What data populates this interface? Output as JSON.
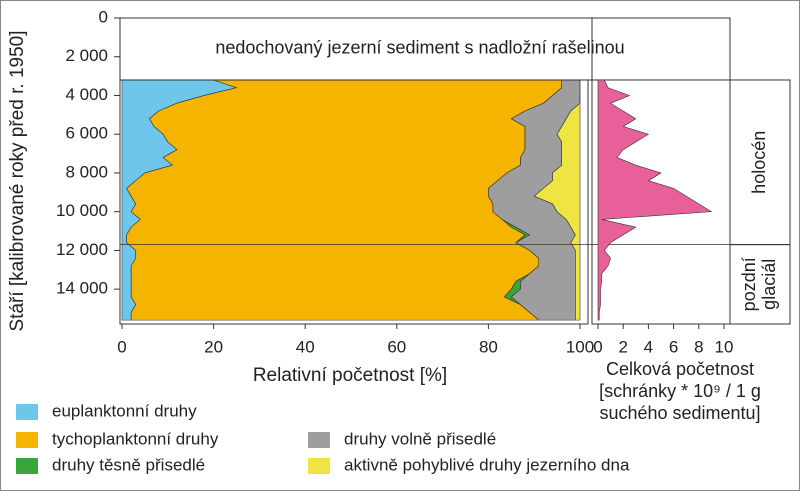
{
  "chart_data": [
    {
      "type": "stacked-area-vertical",
      "ylabel": "Stáří [kalibrované roky před r. 1950]",
      "xlabel": "Relativní početnost [%]",
      "x": [
        3200,
        3600,
        4000,
        4400,
        4800,
        5200,
        5600,
        6000,
        6400,
        6800,
        7200,
        7600,
        8000,
        8400,
        8800,
        9200,
        9600,
        10000,
        10400,
        10800,
        11200,
        11600,
        12000,
        12400,
        12800,
        13200,
        13600,
        14000,
        14400,
        14800,
        15200,
        15600
      ],
      "series": [
        {
          "name": "euplanktonní druhy",
          "color": "#6ec6ea",
          "values": [
            20,
            25,
            18,
            12,
            8,
            6,
            7,
            9,
            10,
            12,
            9,
            11,
            5,
            3,
            1,
            2,
            3,
            2,
            4,
            2,
            1,
            1,
            3,
            3,
            2,
            2,
            2,
            2,
            2,
            3,
            2,
            2
          ]
        },
        {
          "name": "tychoplanktonní druhy",
          "color": "#f4b400",
          "values": [
            76,
            71,
            76,
            80,
            80,
            79,
            81,
            79,
            78,
            76,
            78,
            76,
            79,
            79,
            79,
            78,
            78,
            79,
            79,
            83,
            87,
            85,
            86,
            88,
            89,
            87,
            84,
            83,
            81.5,
            84,
            87,
            89
          ]
        },
        {
          "name": "druhy těsně přisedlé",
          "color": "#3aa639",
          "values": [
            0,
            0,
            0,
            0,
            0,
            0,
            0,
            0,
            0,
            0,
            0,
            0,
            0,
            0,
            0,
            0,
            0,
            0,
            0,
            1,
            1,
            0,
            0,
            0,
            0,
            0,
            1,
            2,
            1.5,
            0,
            0,
            0
          ]
        },
        {
          "name": "druhy volně přisedlé",
          "color": "#9e9e9e",
          "values": [
            4,
            4,
            6,
            8,
            10,
            12,
            8,
            7,
            8,
            8,
            9,
            9,
            10,
            12,
            12,
            10,
            13,
            14,
            14,
            12,
            10,
            12,
            10,
            8,
            8,
            10,
            12,
            12,
            14,
            12,
            10,
            8
          ]
        },
        {
          "name": "aktivně pohyblivé druhy jezerního dna",
          "color": "#f0e442",
          "values": [
            0,
            0,
            0,
            0,
            2,
            3,
            4,
            5,
            4,
            4,
            4,
            4,
            6,
            6,
            8,
            10,
            6,
            5,
            3,
            2,
            1,
            2,
            1,
            1,
            1,
            1,
            1,
            1,
            1,
            1,
            1,
            1
          ]
        }
      ],
      "xlim": [
        0,
        100
      ],
      "xticks": [
        0,
        20,
        40,
        60,
        80,
        100
      ],
      "ylim": [
        0,
        15800
      ],
      "y_reversed": true,
      "yticks": [
        0,
        {
          "value": 2000,
          "label": "2 000"
        },
        {
          "value": 4000,
          "label": "4 000"
        },
        {
          "value": 6000,
          "label": "6 000"
        },
        {
          "value": 8000,
          "label": "8 000"
        },
        {
          "value": 10000,
          "label": "10 000"
        },
        {
          "value": 12000,
          "label": "12 000"
        },
        {
          "value": 14000,
          "label": "14 000"
        }
      ],
      "annotation": {
        "text": "nedochovaný jezerní sediment s nadložní rašelinou",
        "from": 0,
        "to": 3200
      },
      "zones": [
        {
          "label": [
            "holocén"
          ],
          "from": 3200,
          "to": 11700
        },
        {
          "label": [
            "pozdní",
            "glaciál"
          ],
          "from": 11700,
          "to": 15800
        }
      ]
    },
    {
      "type": "area-vertical",
      "xlabel": [
        "Celková početnost",
        "[schránky * 10⁹ / 1 g",
        "suchého sedimentu]"
      ],
      "x": [
        3200,
        3600,
        4000,
        4400,
        4800,
        5200,
        5600,
        6000,
        6400,
        6800,
        7200,
        7600,
        8000,
        8400,
        8800,
        9200,
        9600,
        10000,
        10400,
        10800,
        11200,
        11600,
        12000,
        12400,
        12800,
        13200,
        13600,
        14000,
        14400,
        14800,
        15200,
        15600
      ],
      "values": [
        0.5,
        0.8,
        2.5,
        1,
        2,
        3,
        2,
        4,
        3,
        2,
        1.5,
        3,
        5,
        4,
        6,
        7,
        8,
        9,
        0.3,
        3,
        2,
        1,
        0.5,
        1,
        0.8,
        0.3,
        0.3,
        0.2,
        0.2,
        0.2,
        0.1,
        0.1
      ],
      "color": "#e8609a",
      "xlim": [
        0,
        10
      ],
      "xticks": [
        0,
        2,
        4,
        6,
        8,
        10
      ]
    }
  ]
}
